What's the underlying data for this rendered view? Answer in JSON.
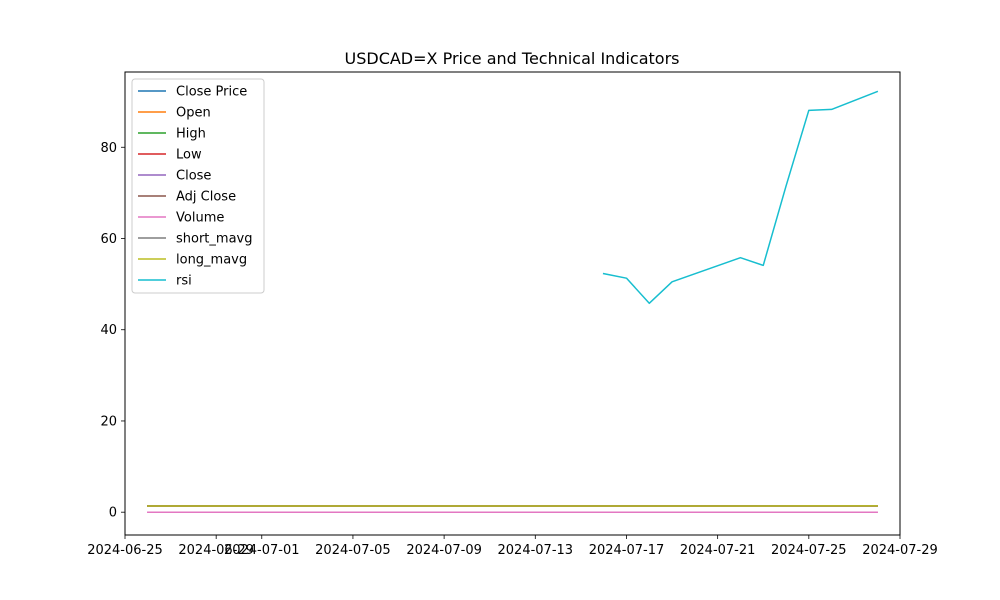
{
  "chart_data": {
    "type": "line",
    "title": "USDCAD=X Price and Technical Indicators",
    "xlabel": "",
    "ylabel": "",
    "xlim": [
      "2024-06-25",
      "2024-07-29"
    ],
    "ylim": [
      -5,
      96.5
    ],
    "x_ticks": [
      {
        "date": "2024-06-25",
        "label": "2024-06-25"
      },
      {
        "date": "2024-06-29",
        "label": "2024-06-29"
      },
      {
        "date": "2024-07-01",
        "label": "2024-07-01"
      },
      {
        "date": "2024-07-05",
        "label": "2024-07-05"
      },
      {
        "date": "2024-07-09",
        "label": "2024-07-09"
      },
      {
        "date": "2024-07-13",
        "label": "2024-07-13"
      },
      {
        "date": "2024-07-17",
        "label": "2024-07-17"
      },
      {
        "date": "2024-07-21",
        "label": "2024-07-21"
      },
      {
        "date": "2024-07-25",
        "label": "2024-07-25"
      },
      {
        "date": "2024-07-29",
        "label": "2024-07-29"
      }
    ],
    "y_ticks": [
      0,
      20,
      40,
      60,
      80
    ],
    "legend_position": "top-left",
    "series": [
      {
        "name": "Close Price",
        "color": "#1f77b4",
        "points": [
          [
            "2024-06-26",
            1.368
          ],
          [
            "2024-07-01",
            1.368
          ],
          [
            "2024-07-05",
            1.366
          ],
          [
            "2024-07-09",
            1.364
          ],
          [
            "2024-07-13",
            1.364
          ],
          [
            "2024-07-17",
            1.368
          ],
          [
            "2024-07-21",
            1.372
          ],
          [
            "2024-07-25",
            1.381
          ],
          [
            "2024-07-28",
            1.385
          ]
        ]
      },
      {
        "name": "Open",
        "color": "#ff7f0e",
        "points": [
          [
            "2024-06-26",
            1.368
          ],
          [
            "2024-07-01",
            1.368
          ],
          [
            "2024-07-05",
            1.366
          ],
          [
            "2024-07-09",
            1.364
          ],
          [
            "2024-07-13",
            1.364
          ],
          [
            "2024-07-17",
            1.368
          ],
          [
            "2024-07-21",
            1.372
          ],
          [
            "2024-07-25",
            1.381
          ],
          [
            "2024-07-28",
            1.385
          ]
        ]
      },
      {
        "name": "High",
        "color": "#2ca02c",
        "points": [
          [
            "2024-06-26",
            1.372
          ],
          [
            "2024-07-01",
            1.372
          ],
          [
            "2024-07-05",
            1.369
          ],
          [
            "2024-07-09",
            1.367
          ],
          [
            "2024-07-13",
            1.367
          ],
          [
            "2024-07-17",
            1.372
          ],
          [
            "2024-07-21",
            1.376
          ],
          [
            "2024-07-25",
            1.385
          ],
          [
            "2024-07-28",
            1.389
          ]
        ]
      },
      {
        "name": "Low",
        "color": "#d62728",
        "points": [
          [
            "2024-06-26",
            1.364
          ],
          [
            "2024-07-01",
            1.364
          ],
          [
            "2024-07-05",
            1.362
          ],
          [
            "2024-07-09",
            1.36
          ],
          [
            "2024-07-13",
            1.36
          ],
          [
            "2024-07-17",
            1.364
          ],
          [
            "2024-07-21",
            1.368
          ],
          [
            "2024-07-25",
            1.377
          ],
          [
            "2024-07-28",
            1.381
          ]
        ]
      },
      {
        "name": "Close",
        "color": "#9467bd",
        "points": [
          [
            "2024-06-26",
            1.368
          ],
          [
            "2024-07-01",
            1.368
          ],
          [
            "2024-07-05",
            1.366
          ],
          [
            "2024-07-09",
            1.364
          ],
          [
            "2024-07-13",
            1.364
          ],
          [
            "2024-07-17",
            1.368
          ],
          [
            "2024-07-21",
            1.372
          ],
          [
            "2024-07-25",
            1.381
          ],
          [
            "2024-07-28",
            1.385
          ]
        ]
      },
      {
        "name": "Adj Close",
        "color": "#8c564b",
        "points": [
          [
            "2024-06-26",
            1.368
          ],
          [
            "2024-07-01",
            1.368
          ],
          [
            "2024-07-05",
            1.366
          ],
          [
            "2024-07-09",
            1.364
          ],
          [
            "2024-07-13",
            1.364
          ],
          [
            "2024-07-17",
            1.368
          ],
          [
            "2024-07-21",
            1.372
          ],
          [
            "2024-07-25",
            1.381
          ],
          [
            "2024-07-28",
            1.385
          ]
        ]
      },
      {
        "name": "Volume",
        "color": "#e377c2",
        "points": [
          [
            "2024-06-26",
            0
          ],
          [
            "2024-07-28",
            0
          ]
        ]
      },
      {
        "name": "short_mavg",
        "color": "#7f7f7f",
        "points": [
          [
            "2024-06-26",
            1.368
          ],
          [
            "2024-07-01",
            1.368
          ],
          [
            "2024-07-05",
            1.367
          ],
          [
            "2024-07-09",
            1.365
          ],
          [
            "2024-07-13",
            1.364
          ],
          [
            "2024-07-17",
            1.366
          ],
          [
            "2024-07-21",
            1.37
          ],
          [
            "2024-07-25",
            1.377
          ],
          [
            "2024-07-28",
            1.382
          ]
        ]
      },
      {
        "name": "long_mavg",
        "color": "#bcbd22",
        "points": [
          [
            "2024-06-26",
            1.368
          ],
          [
            "2024-07-01",
            1.368
          ],
          [
            "2024-07-05",
            1.367
          ],
          [
            "2024-07-09",
            1.366
          ],
          [
            "2024-07-13",
            1.365
          ],
          [
            "2024-07-17",
            1.366
          ],
          [
            "2024-07-21",
            1.368
          ],
          [
            "2024-07-25",
            1.372
          ],
          [
            "2024-07-28",
            1.375
          ]
        ]
      },
      {
        "name": "rsi",
        "color": "#17becf",
        "points": [
          [
            "2024-07-16",
            52.3
          ],
          [
            "2024-07-17",
            51.3
          ],
          [
            "2024-07-18",
            45.8
          ],
          [
            "2024-07-19",
            50.5
          ],
          [
            "2024-07-22",
            55.8
          ],
          [
            "2024-07-23",
            54.1
          ],
          [
            "2024-07-24",
            71.5
          ],
          [
            "2024-07-25",
            88.1
          ],
          [
            "2024-07-26",
            88.3
          ],
          [
            "2024-07-28",
            92.2
          ]
        ]
      }
    ]
  }
}
